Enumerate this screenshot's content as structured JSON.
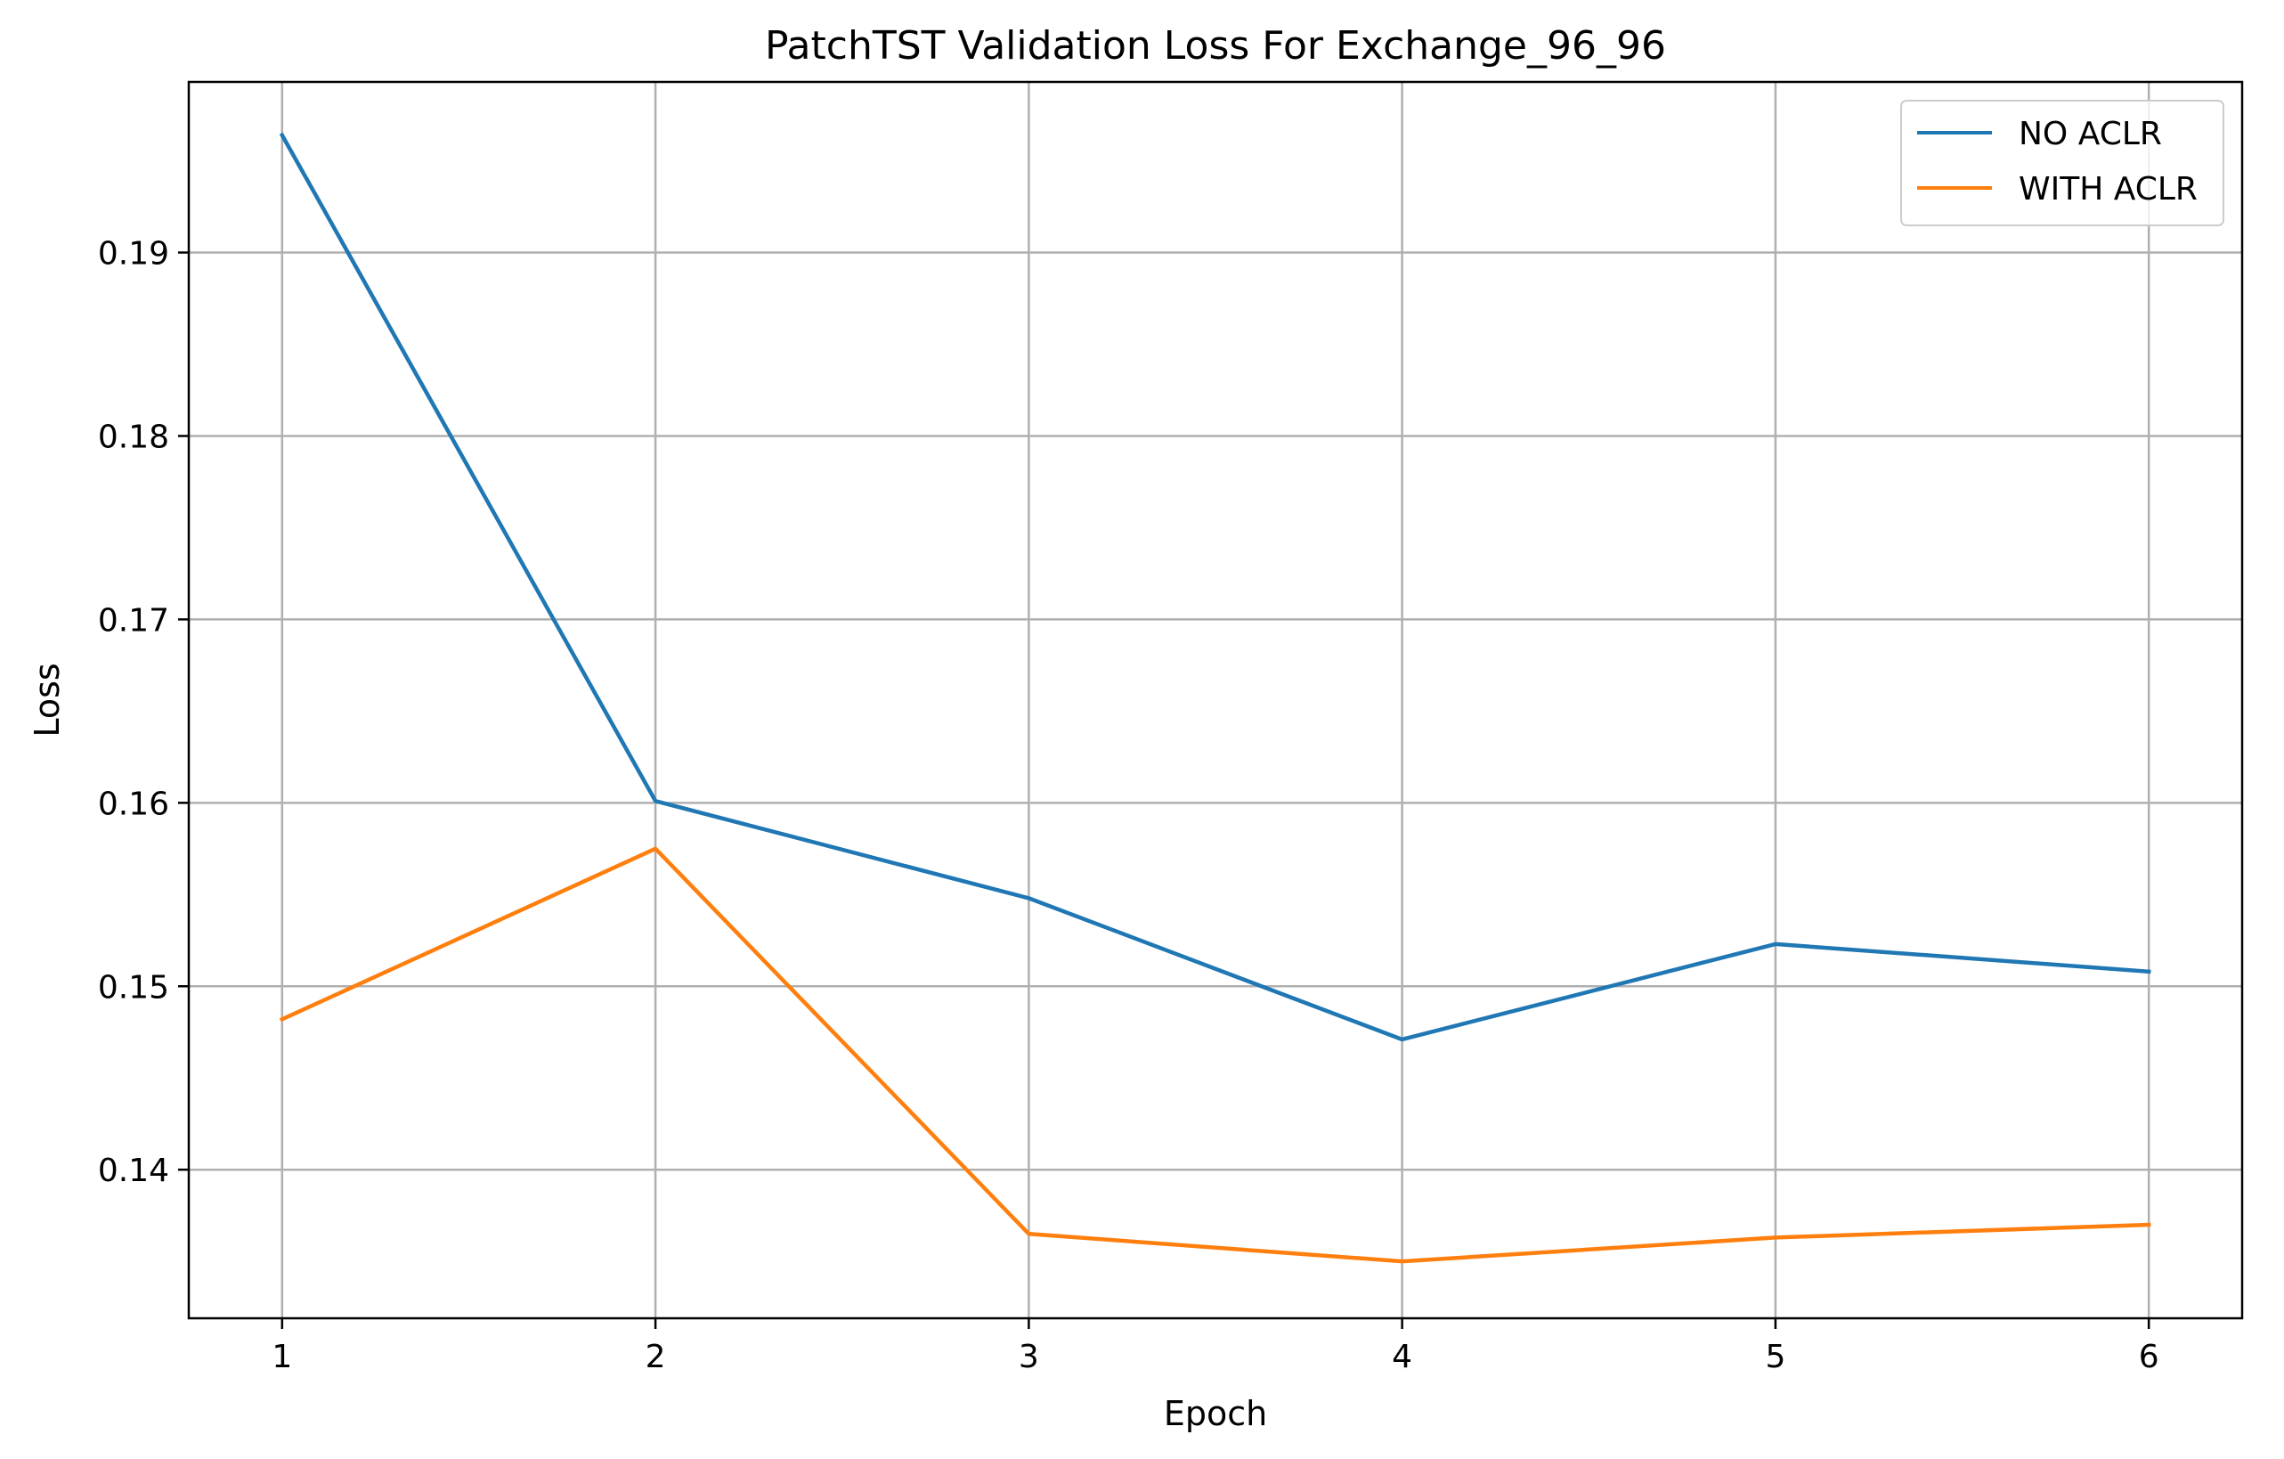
{
  "chart_data": {
    "type": "line",
    "title": "PatchTST Validation Loss For Exchange_96_96",
    "xlabel": "Epoch",
    "ylabel": "Loss",
    "x": [
      1,
      2,
      3,
      4,
      5,
      6
    ],
    "xticks": [
      "1",
      "2",
      "3",
      "4",
      "5",
      "6"
    ],
    "xlim": [
      0.75,
      6.25
    ],
    "yticks": [
      "0.14",
      "0.15",
      "0.16",
      "0.17",
      "0.18",
      "0.19"
    ],
    "ylim": [
      0.1319,
      0.1993
    ],
    "grid": true,
    "legend_position": "top-right",
    "series": [
      {
        "name": "NO ACLR",
        "color": "#1f77b4",
        "values": [
          0.1964,
          0.1601,
          0.1548,
          0.1471,
          0.1523,
          0.1508
        ]
      },
      {
        "name": "WITH ACLR",
        "color": "#ff7f0e",
        "values": [
          0.1482,
          0.1575,
          0.1365,
          0.135,
          0.1363,
          0.137
        ]
      }
    ]
  }
}
